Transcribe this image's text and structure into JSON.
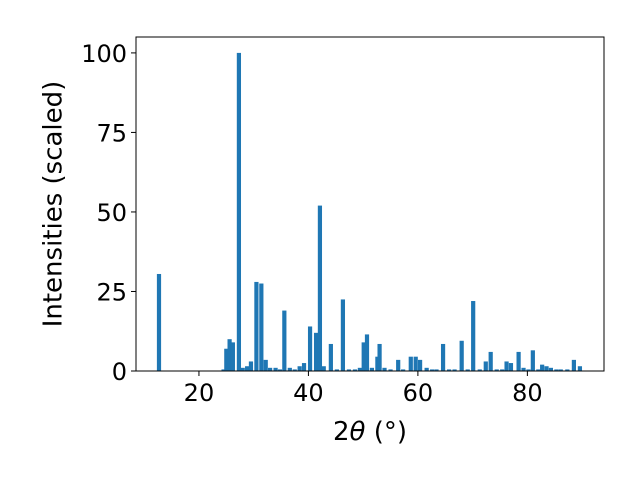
{
  "chart_data": {
    "type": "bar",
    "xlabel_prefix": "2",
    "xlabel_symbol": "θ",
    "xlabel_suffix": " (°)",
    "ylabel": "Intensities (scaled)",
    "xlim": [
      8.5,
      94
    ],
    "ylim": [
      0,
      105
    ],
    "xticks": [
      "20",
      "40",
      "60",
      "80"
    ],
    "yticks": [
      "0",
      "25",
      "50",
      "75",
      "100"
    ],
    "grid": false,
    "bar_color": "#1f77b4",
    "x": [
      12.7,
      24.5,
      25.0,
      25.6,
      26.2,
      27.3,
      28.0,
      28.8,
      29.5,
      30.5,
      31.4,
      32.2,
      33.0,
      34.0,
      34.8,
      35.6,
      36.6,
      37.5,
      38.4,
      39.2,
      40.3,
      41.4,
      42.1,
      42.8,
      44.1,
      45.2,
      46.3,
      47.4,
      48.5,
      49.4,
      50.1,
      50.7,
      51.6,
      52.6,
      53.0,
      53.9,
      55.0,
      56.4,
      57.3,
      58.7,
      59.6,
      60.4,
      61.6,
      62.6,
      63.4,
      64.6,
      65.7,
      66.7,
      68.0,
      69.1,
      70.1,
      71.3,
      72.4,
      73.3,
      74.4,
      75.4,
      76.2,
      77.0,
      78.4,
      79.3,
      80.2,
      81.0,
      82.0,
      82.7,
      83.5,
      84.3,
      85.3,
      86.1,
      87.3,
      88.5,
      89.6
    ],
    "values": [
      30.5,
      0.5,
      7,
      10,
      9,
      100,
      1,
      1.5,
      3,
      28,
      27.5,
      3.5,
      1,
      1,
      0.5,
      19,
      1,
      0.5,
      1.5,
      2.5,
      14,
      12,
      52,
      1.5,
      8.5,
      0.5,
      22.5,
      0.5,
      0.5,
      1,
      9,
      11.5,
      1,
      4.5,
      8.5,
      1,
      0.5,
      3.5,
      0.5,
      4.5,
      4.5,
      3.5,
      1,
      0.5,
      0.5,
      8.5,
      0.5,
      0.5,
      9.5,
      0.5,
      22,
      0.5,
      3,
      6,
      0.5,
      0.5,
      3,
      2.5,
      6,
      1,
      0.5,
      6.5,
      0.5,
      2,
      1.5,
      1,
      0.5,
      0.5,
      0.5,
      3.5,
      1.5
    ]
  }
}
